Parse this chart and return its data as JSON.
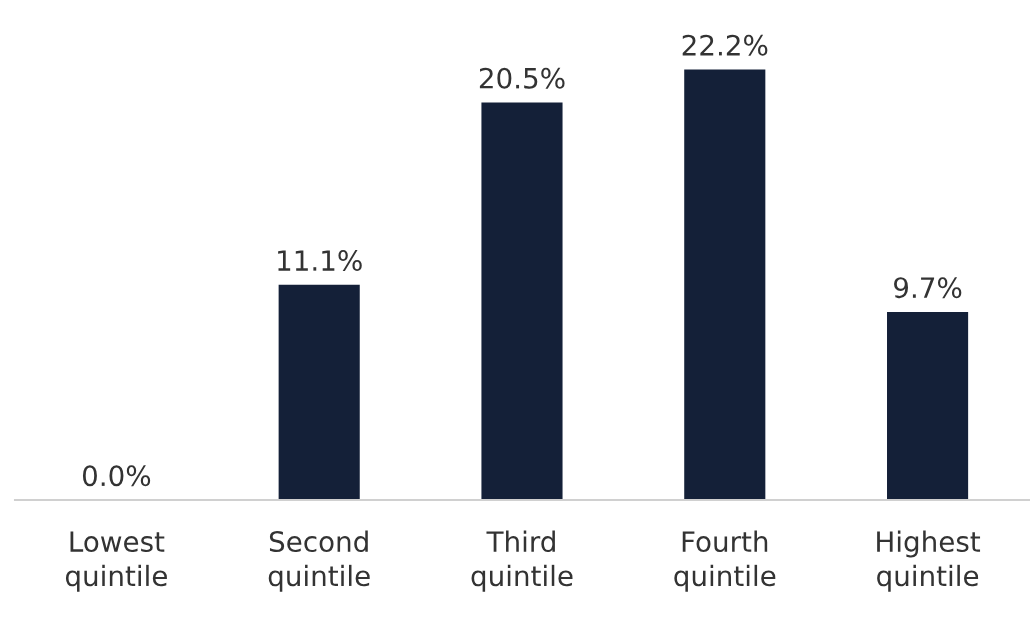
{
  "chart_data": {
    "type": "bar",
    "categories": [
      "Lowest\nquintile",
      "Second\nquintile",
      "Third\nquintile",
      "Fourth\nquintile",
      "Highest\nquintile"
    ],
    "values": [
      0.0,
      11.1,
      20.5,
      22.2,
      9.7
    ],
    "value_labels": [
      "0.0%",
      "11.1%",
      "20.5%",
      "22.2%",
      "9.7%"
    ],
    "color": "#142038",
    "grid": false,
    "legend": false
  }
}
